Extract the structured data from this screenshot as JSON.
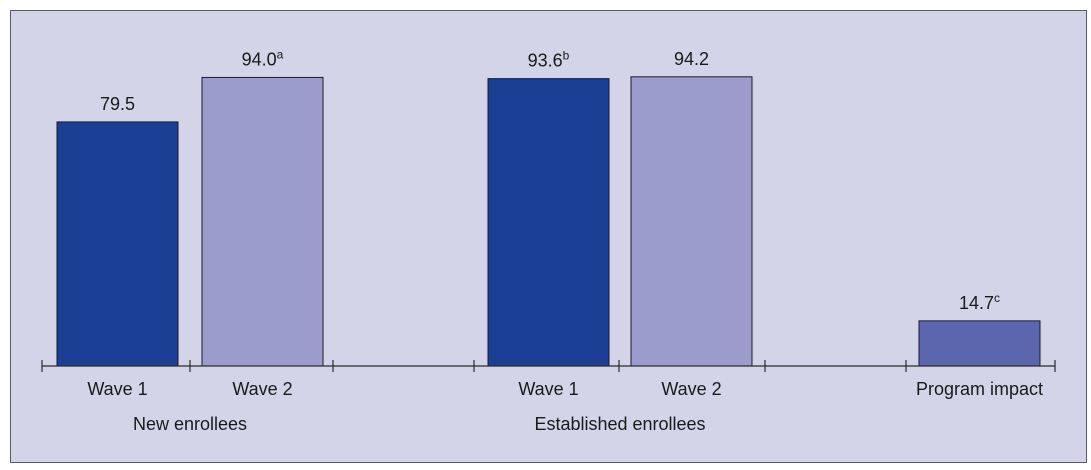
{
  "chart_data": {
    "type": "bar",
    "colors": {
      "background": "#d3d4e8",
      "wave1": "#1b3f94",
      "wave2": "#9b9ccb",
      "impact": "#5b66ae",
      "axis": "#2a2a2a",
      "frame": "#5a5a6a"
    },
    "ylim": [
      0,
      100
    ],
    "groups": [
      {
        "label": "New enrollees",
        "bars": [
          {
            "category": "Wave 1",
            "value": 79.5,
            "label": "79.5",
            "note": "",
            "series": "wave1"
          },
          {
            "category": "Wave 2",
            "value": 94.0,
            "label": "94.0",
            "note": "a",
            "series": "wave2"
          }
        ]
      },
      {
        "label": "Established enrollees",
        "bars": [
          {
            "category": "Wave 1",
            "value": 93.6,
            "label": "93.6",
            "note": "b",
            "series": "wave1"
          },
          {
            "category": "Wave 2",
            "value": 94.2,
            "label": "94.2",
            "note": "",
            "series": "wave2"
          }
        ]
      },
      {
        "label": "",
        "bars": [
          {
            "category": "Program impact",
            "value": 14.7,
            "label": "14.7",
            "note": "c",
            "series": "impact"
          }
        ]
      }
    ]
  }
}
